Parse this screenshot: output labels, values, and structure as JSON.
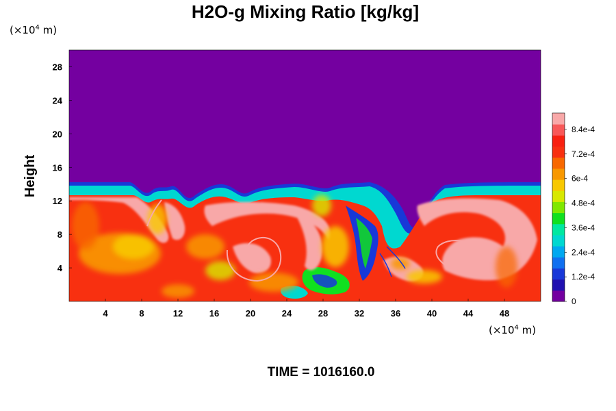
{
  "chart_data": {
    "type": "heatmap",
    "title": "H2O-g Mixing Ratio [kg/kg]",
    "ylabel": "Height",
    "y_unit": {
      "prefix": "(×10",
      "exp": "4",
      "suffix": " m)"
    },
    "x_unit": {
      "prefix": "(×10",
      "exp": "4",
      "suffix": " m)"
    },
    "xlim": [
      0,
      52
    ],
    "ylim": [
      0,
      30
    ],
    "x_ticks": [
      4,
      8,
      12,
      16,
      20,
      24,
      28,
      32,
      36,
      40,
      44,
      48
    ],
    "y_ticks": [
      4,
      8,
      12,
      16,
      20,
      24,
      28
    ],
    "x_tick_labels": [
      "4",
      "8",
      "12",
      "16",
      "20",
      "24",
      "28",
      "32",
      "36",
      "40",
      "44",
      "48"
    ],
    "y_tick_labels": [
      "4",
      "8",
      "12",
      "16",
      "20",
      "24",
      "28"
    ],
    "colorbar": {
      "min": 0,
      "max": 0.00092,
      "ticks": [
        0,
        0.00012,
        0.00024,
        0.00036,
        0.00048,
        0.0006,
        0.00072,
        0.00084
      ],
      "tick_labels": [
        "0",
        "1.2e-4",
        "2.4e-4",
        "3.6e-4",
        "4.8e-4",
        "6e-4",
        "7.2e-4",
        "8.4e-4"
      ],
      "levels": [
        "#7400a0",
        "#2010b0",
        "#1838d8",
        "#1070f0",
        "#00a8f0",
        "#00d8d0",
        "#00e8a0",
        "#10e020",
        "#80e800",
        "#d8e800",
        "#f8c800",
        "#f89800",
        "#f86800",
        "#f83010",
        "#f82010",
        "#f85858",
        "#f8a8a8"
      ]
    },
    "field": {
      "moist_top_height": 13.5,
      "dry_value": 0,
      "moist_value": 0.00082,
      "vortex_centers_x": [
        8,
        21,
        40
      ],
      "dry_gaps_x": [
        [
          26,
          35
        ]
      ]
    },
    "footer": "TIME = 1016160.0"
  }
}
